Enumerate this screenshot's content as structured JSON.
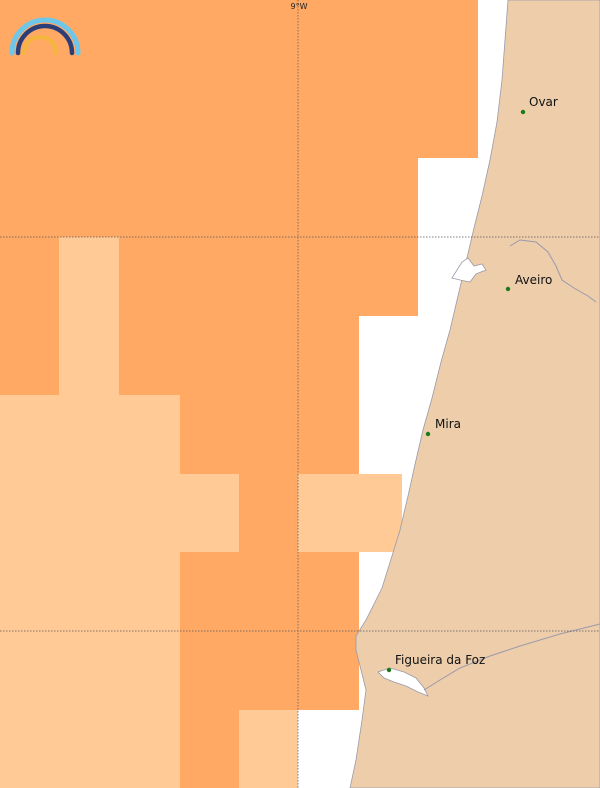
{
  "map": {
    "colors": {
      "land": "#EDCDAA",
      "sea_low": "#FFCA96",
      "sea_high": "#FFA965",
      "sea_background": "#FFFFFF",
      "coastline": "#9A9AAA",
      "river": "#9A9AAA",
      "city_dot": "#1a7a1a",
      "gridline": "#555555"
    },
    "graticule": {
      "meridian_label": "9°W"
    },
    "cities": [
      {
        "name": "Ovar"
      },
      {
        "name": "Aveiro"
      },
      {
        "name": "Mira"
      },
      {
        "name": "Figueira da Foz"
      }
    ],
    "logo": {
      "icon": "rainbow-arc-logo-icon",
      "colors": [
        "#6EC6E8",
        "#2C3E78",
        "#F4B63C"
      ]
    }
  }
}
